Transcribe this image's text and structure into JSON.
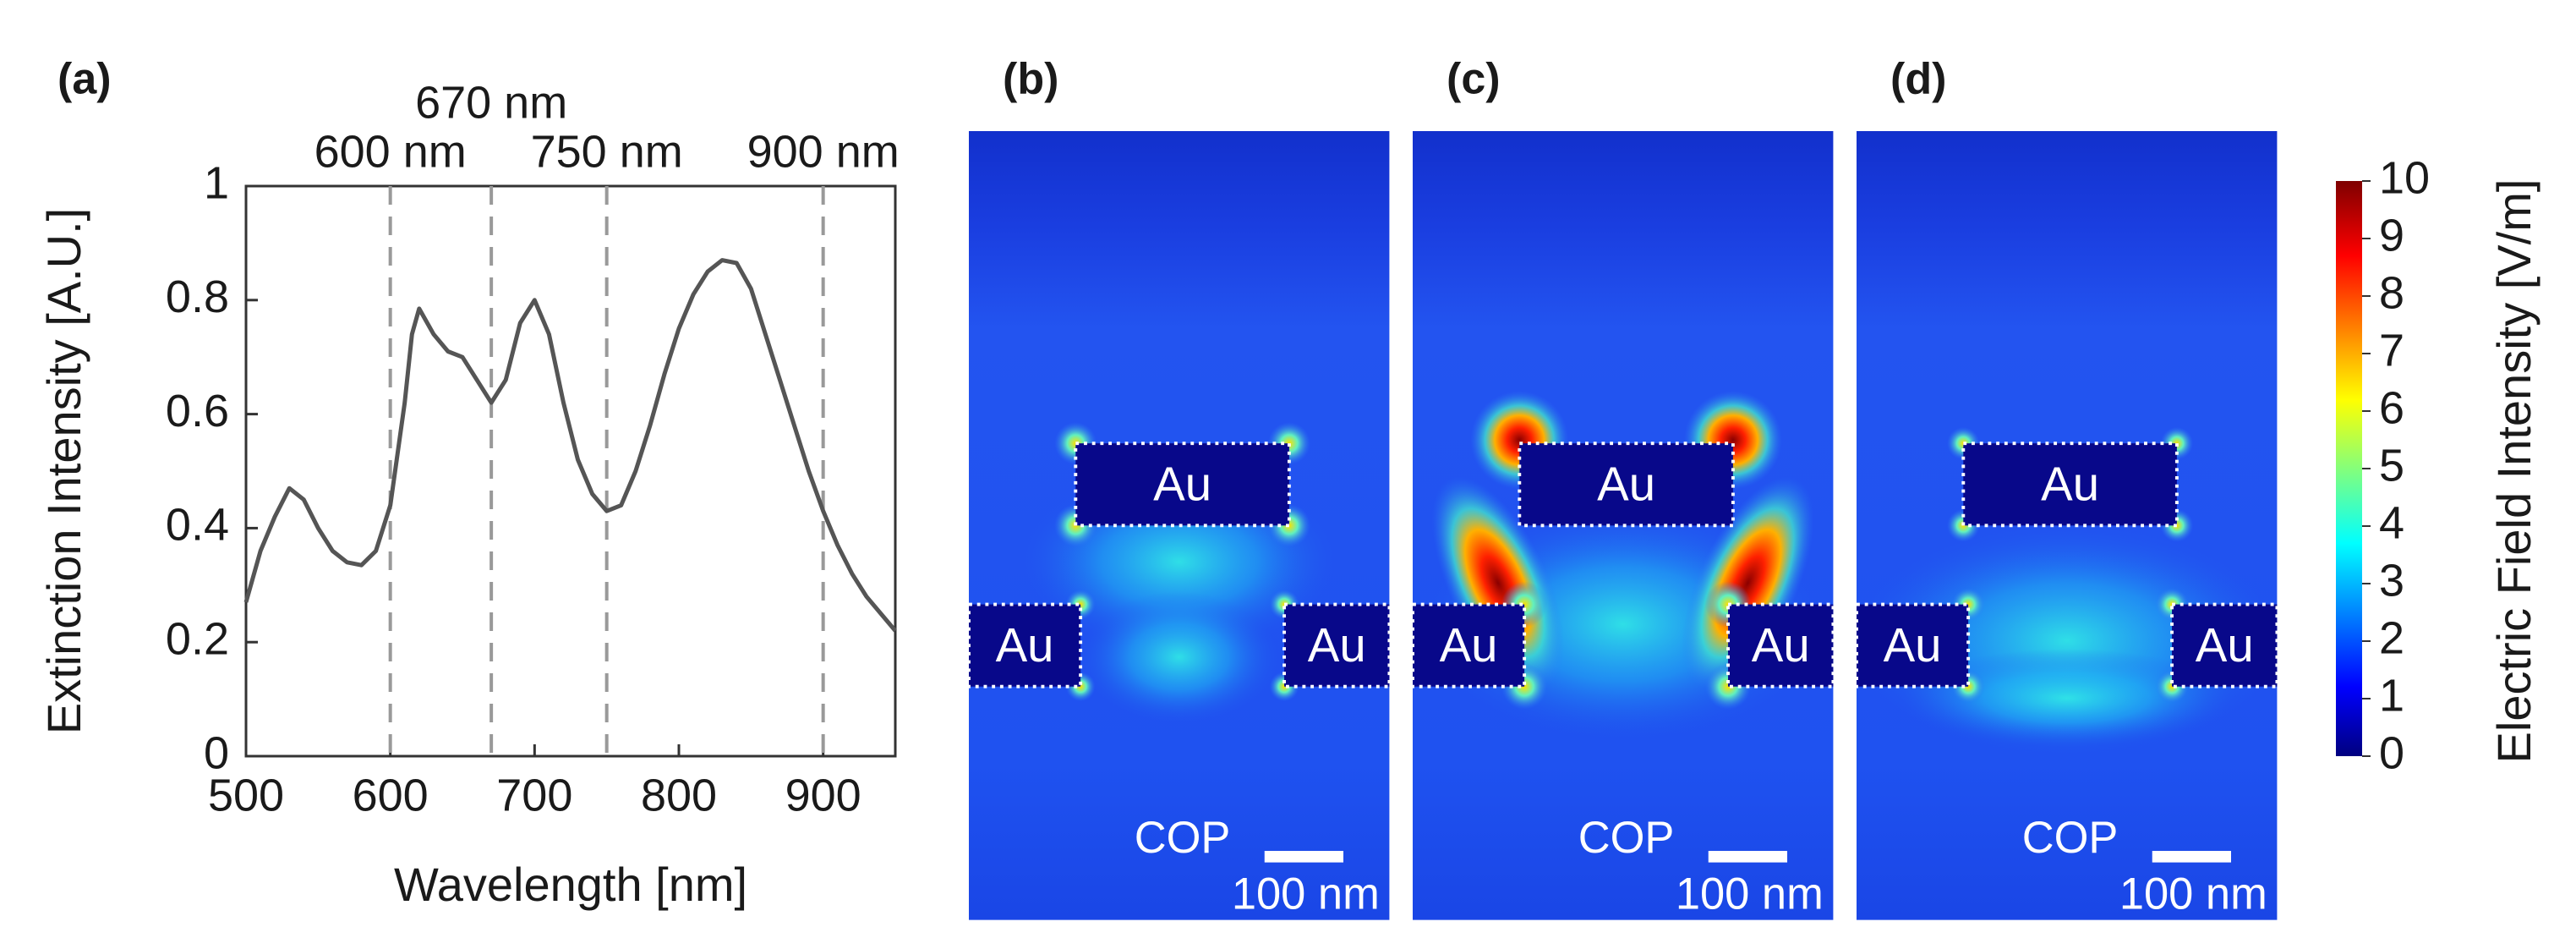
{
  "chart_data": {
    "type": "line",
    "label": "(a)",
    "x_label": "Wavelength [nm]",
    "y_label": "Extinction Intensity [A.U.]",
    "x": [
      500,
      510,
      520,
      530,
      540,
      550,
      560,
      570,
      580,
      590,
      600,
      610,
      615,
      620,
      630,
      640,
      650,
      660,
      670,
      680,
      690,
      700,
      710,
      720,
      730,
      740,
      750,
      760,
      770,
      780,
      790,
      800,
      810,
      820,
      830,
      840,
      850,
      860,
      870,
      880,
      890,
      900,
      910,
      920,
      930,
      940,
      950
    ],
    "values": [
      0.27,
      0.36,
      0.42,
      0.47,
      0.45,
      0.4,
      0.36,
      0.34,
      0.335,
      0.36,
      0.44,
      0.62,
      0.74,
      0.785,
      0.74,
      0.71,
      0.7,
      0.66,
      0.62,
      0.66,
      0.76,
      0.8,
      0.74,
      0.62,
      0.52,
      0.46,
      0.43,
      0.44,
      0.5,
      0.58,
      0.67,
      0.75,
      0.81,
      0.85,
      0.87,
      0.865,
      0.82,
      0.74,
      0.66,
      0.58,
      0.5,
      0.43,
      0.37,
      0.32,
      0.28,
      0.25,
      0.22
    ],
    "color": "#555555",
    "xlim": [
      500,
      950
    ],
    "xticks": [
      500,
      600,
      700,
      800,
      900
    ],
    "ylim": [
      0,
      1
    ],
    "yticks": [
      0,
      0.2,
      0.4,
      0.6,
      0.8,
      1
    ],
    "markers": [
      {
        "x": 600,
        "label": "600 nm"
      },
      {
        "x": 670,
        "label": "670 nm"
      },
      {
        "x": 750,
        "label": "750 nm"
      },
      {
        "x": 900,
        "label": "900 nm"
      }
    ],
    "grid": false
  },
  "panels": [
    {
      "label": "(b)",
      "regions": [
        "Au",
        "Au",
        "Au"
      ],
      "substrate": "COP",
      "scale_bar": "100 nm"
    },
    {
      "label": "(c)",
      "regions": [
        "Au",
        "Au",
        "Au"
      ],
      "substrate": "COP",
      "scale_bar": "100 nm"
    },
    {
      "label": "(d)",
      "regions": [
        "Au",
        "Au",
        "Au"
      ],
      "substrate": "COP",
      "scale_bar": "100 nm"
    }
  ],
  "colorbar": {
    "label": "Electric Field Intensity [V/m]",
    "lim": [
      0,
      10
    ],
    "ticks": [
      0,
      1,
      2,
      3,
      4,
      5,
      6,
      7,
      8,
      9,
      10
    ]
  }
}
